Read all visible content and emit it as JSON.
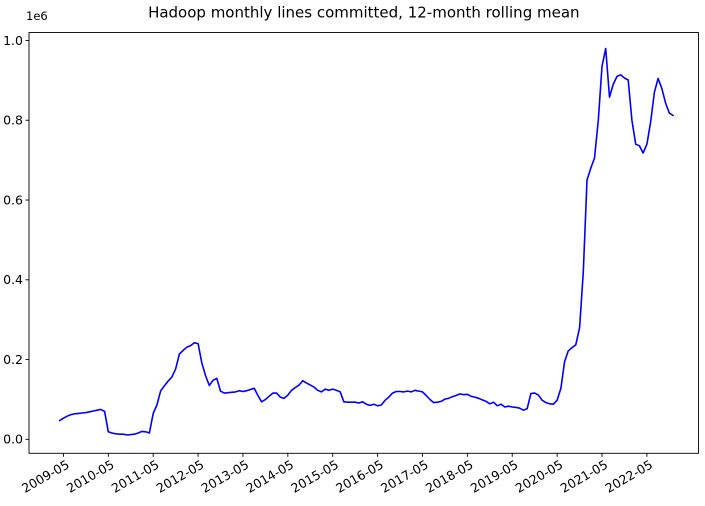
{
  "chart_data": {
    "type": "line",
    "title": "Hadoop monthly lines committed, 12-month rolling mean",
    "y_offset_text": "1e6",
    "line_color": "#0000ff",
    "background_color": "#ffffff",
    "grid": false,
    "legend": "none",
    "xlabel": "",
    "ylabel": "",
    "x_tick_labels": [
      "2009-05",
      "2010-05",
      "2011-05",
      "2012-05",
      "2013-05",
      "2014-05",
      "2015-05",
      "2016-05",
      "2017-05",
      "2018-05",
      "2019-05",
      "2020-05",
      "2021-05",
      "2022-05"
    ],
    "x_tick_rotation_deg": 30,
    "y_ticks": [
      {
        "label": "0.0",
        "value": 0
      },
      {
        "label": "0.2",
        "value": 200000
      },
      {
        "label": "0.4",
        "value": 400000
      },
      {
        "label": "0.6",
        "value": 600000
      },
      {
        "label": "0.8",
        "value": 800000
      },
      {
        "label": "1.0",
        "value": 1000000
      }
    ],
    "xlim_months": [
      -8.2,
      170.8
    ],
    "ylim": [
      -35000,
      1020000
    ],
    "series": [
      {
        "name": "12-month rolling mean of monthly lines committed",
        "points": [
          [
            "2009-04",
            47000
          ],
          [
            "2009-05",
            53000
          ],
          [
            "2009-06",
            58000
          ],
          [
            "2009-07",
            62000
          ],
          [
            "2009-08",
            64000
          ],
          [
            "2009-09",
            65000
          ],
          [
            "2009-10",
            66000
          ],
          [
            "2009-11",
            67000
          ],
          [
            "2009-12",
            69000
          ],
          [
            "2010-01",
            71000
          ],
          [
            "2010-02",
            73000
          ],
          [
            "2010-03",
            75000
          ],
          [
            "2010-04",
            70000
          ],
          [
            "2010-05",
            19000
          ],
          [
            "2010-06",
            16000
          ],
          [
            "2010-07",
            14000
          ],
          [
            "2010-08",
            13000
          ],
          [
            "2010-09",
            13000
          ],
          [
            "2010-10",
            11000
          ],
          [
            "2010-11",
            12000
          ],
          [
            "2010-12",
            13000
          ],
          [
            "2011-01",
            16000
          ],
          [
            "2011-02",
            20000
          ],
          [
            "2011-03",
            19000
          ],
          [
            "2011-04",
            16000
          ],
          [
            "2011-05",
            65000
          ],
          [
            "2011-06",
            86000
          ],
          [
            "2011-07",
            122000
          ],
          [
            "2011-08",
            134000
          ],
          [
            "2011-09",
            146000
          ],
          [
            "2011-10",
            156000
          ],
          [
            "2011-11",
            176000
          ],
          [
            "2011-12",
            214000
          ],
          [
            "2012-01",
            223000
          ],
          [
            "2012-02",
            231000
          ],
          [
            "2012-03",
            235000
          ],
          [
            "2012-04",
            242000
          ],
          [
            "2012-05",
            240000
          ],
          [
            "2012-06",
            192000
          ],
          [
            "2012-07",
            160000
          ],
          [
            "2012-08",
            135000
          ],
          [
            "2012-09",
            148000
          ],
          [
            "2012-10",
            153000
          ],
          [
            "2012-11",
            121000
          ],
          [
            "2012-12",
            116000
          ],
          [
            "2013-01",
            117000
          ],
          [
            "2013-02",
            118000
          ],
          [
            "2013-03",
            119000
          ],
          [
            "2013-04",
            122000
          ],
          [
            "2013-05",
            120000
          ],
          [
            "2013-06",
            122000
          ],
          [
            "2013-07",
            125000
          ],
          [
            "2013-08",
            128000
          ],
          [
            "2013-09",
            110000
          ],
          [
            "2013-10",
            94000
          ],
          [
            "2013-11",
            100000
          ],
          [
            "2013-12",
            108000
          ],
          [
            "2014-01",
            116000
          ],
          [
            "2014-02",
            116000
          ],
          [
            "2014-03",
            106000
          ],
          [
            "2014-04",
            103000
          ],
          [
            "2014-05",
            111000
          ],
          [
            "2014-06",
            123000
          ],
          [
            "2014-07",
            130000
          ],
          [
            "2014-08",
            136000
          ],
          [
            "2014-09",
            147000
          ],
          [
            "2014-10",
            141000
          ],
          [
            "2014-11",
            136000
          ],
          [
            "2014-12",
            131000
          ],
          [
            "2015-01",
            123000
          ],
          [
            "2015-02",
            119000
          ],
          [
            "2015-03",
            126000
          ],
          [
            "2015-04",
            123000
          ],
          [
            "2015-05",
            126000
          ],
          [
            "2015-06",
            123000
          ],
          [
            "2015-07",
            119000
          ],
          [
            "2015-08",
            94000
          ],
          [
            "2015-09",
            93000
          ],
          [
            "2015-10",
            93000
          ],
          [
            "2015-11",
            93000
          ],
          [
            "2015-12",
            91000
          ],
          [
            "2016-01",
            94000
          ],
          [
            "2016-02",
            88000
          ],
          [
            "2016-03",
            85000
          ],
          [
            "2016-04",
            88000
          ],
          [
            "2016-05",
            84000
          ],
          [
            "2016-06",
            86000
          ],
          [
            "2016-07",
            98000
          ],
          [
            "2016-08",
            106000
          ],
          [
            "2016-09",
            116000
          ],
          [
            "2016-10",
            120000
          ],
          [
            "2016-11",
            120000
          ],
          [
            "2016-12",
            119000
          ],
          [
            "2017-01",
            121000
          ],
          [
            "2017-02",
            119000
          ],
          [
            "2017-03",
            123000
          ],
          [
            "2017-04",
            121000
          ],
          [
            "2017-05",
            119000
          ],
          [
            "2017-06",
            110000
          ],
          [
            "2017-07",
            100000
          ],
          [
            "2017-08",
            92000
          ],
          [
            "2017-09",
            93000
          ],
          [
            "2017-10",
            95000
          ],
          [
            "2017-11",
            101000
          ],
          [
            "2017-12",
            103000
          ],
          [
            "2018-01",
            107000
          ],
          [
            "2018-02",
            110000
          ],
          [
            "2018-03",
            114000
          ],
          [
            "2018-04",
            112000
          ],
          [
            "2018-05",
            113000
          ],
          [
            "2018-06",
            108000
          ],
          [
            "2018-07",
            106000
          ],
          [
            "2018-08",
            103000
          ],
          [
            "2018-09",
            99000
          ],
          [
            "2018-10",
            95000
          ],
          [
            "2018-11",
            89000
          ],
          [
            "2018-12",
            93000
          ],
          [
            "2019-01",
            84000
          ],
          [
            "2019-02",
            88000
          ],
          [
            "2019-03",
            81000
          ],
          [
            "2019-04",
            83000
          ],
          [
            "2019-05",
            81000
          ],
          [
            "2019-06",
            80000
          ],
          [
            "2019-07",
            78000
          ],
          [
            "2019-08",
            73000
          ],
          [
            "2019-09",
            77000
          ],
          [
            "2019-10",
            115000
          ],
          [
            "2019-11",
            116000
          ],
          [
            "2019-12",
            111000
          ],
          [
            "2020-01",
            98000
          ],
          [
            "2020-02",
            92000
          ],
          [
            "2020-03",
            89000
          ],
          [
            "2020-04",
            88000
          ],
          [
            "2020-05",
            98000
          ],
          [
            "2020-06",
            128000
          ],
          [
            "2020-07",
            195000
          ],
          [
            "2020-08",
            222000
          ],
          [
            "2020-09",
            230000
          ],
          [
            "2020-10",
            237000
          ],
          [
            "2020-11",
            280000
          ],
          [
            "2020-12",
            420000
          ],
          [
            "2021-01",
            650000
          ],
          [
            "2021-02",
            680000
          ],
          [
            "2021-03",
            705000
          ],
          [
            "2021-04",
            800000
          ],
          [
            "2021-05",
            935000
          ],
          [
            "2021-06",
            980000
          ],
          [
            "2021-07",
            858000
          ],
          [
            "2021-08",
            890000
          ],
          [
            "2021-09",
            910000
          ],
          [
            "2021-10",
            914000
          ],
          [
            "2021-11",
            906000
          ],
          [
            "2021-12",
            901000
          ],
          [
            "2022-01",
            800000
          ],
          [
            "2022-02",
            740000
          ],
          [
            "2022-03",
            736000
          ],
          [
            "2022-04",
            718000
          ],
          [
            "2022-05",
            740000
          ],
          [
            "2022-06",
            795000
          ],
          [
            "2022-07",
            870000
          ],
          [
            "2022-08",
            905000
          ],
          [
            "2022-09",
            880000
          ],
          [
            "2022-10",
            843000
          ],
          [
            "2022-11",
            818000
          ],
          [
            "2022-12",
            812000
          ]
        ]
      }
    ]
  }
}
